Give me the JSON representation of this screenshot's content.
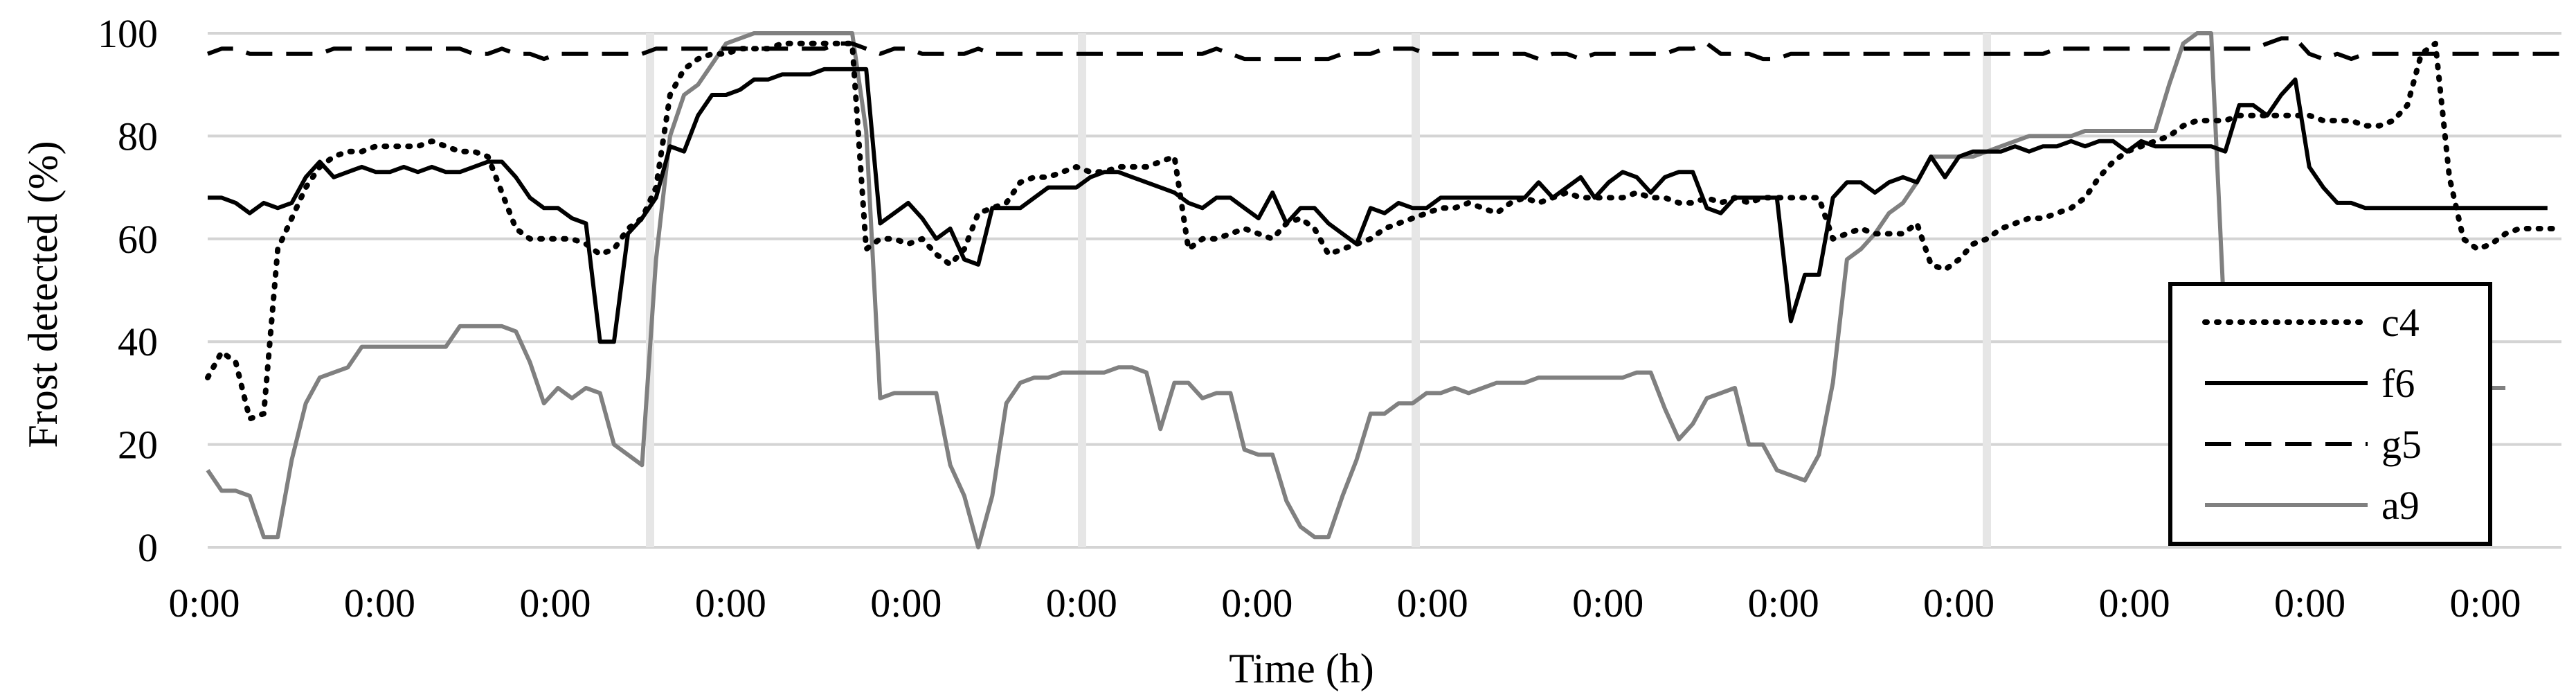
{
  "chart_data": {
    "type": "line",
    "xlabel": "Time (h)",
    "ylabel": "Frost detected (%)",
    "ylim": [
      0,
      100
    ],
    "yticks": [
      0,
      20,
      40,
      60,
      80,
      100
    ],
    "xtick_labels": [
      "0:00",
      "0:00",
      "0:00",
      "0:00",
      "0:00",
      "0:00",
      "0:00",
      "0:00",
      "0:00",
      "0:00",
      "0:00",
      "0:00",
      "0:00",
      "0:00"
    ],
    "grid": "horizontal",
    "legend_position": "right",
    "x_count": 169,
    "series": [
      {
        "name": "c4",
        "color": "#000000",
        "style": "dotted",
        "values": [
          33,
          38,
          36,
          25,
          26,
          58,
          64,
          70,
          74,
          76,
          77,
          77,
          78,
          78,
          78,
          78,
          79,
          78,
          77,
          77,
          76,
          69,
          62,
          60,
          60,
          60,
          60,
          59,
          57,
          58,
          62,
          64,
          70,
          88,
          93,
          95,
          96,
          96,
          97,
          97,
          97,
          98,
          98,
          98,
          98,
          98,
          98,
          58,
          60,
          60,
          59,
          60,
          57,
          55,
          58,
          65,
          66,
          67,
          71,
          72,
          72,
          73,
          74,
          73,
          73,
          74,
          74,
          74,
          75,
          76,
          58,
          60,
          60,
          61,
          62,
          61,
          60,
          63,
          64,
          62,
          57,
          58,
          59,
          60,
          62,
          63,
          64,
          65,
          66,
          66,
          67,
          66,
          65,
          67,
          68,
          67,
          68,
          69,
          68,
          68,
          68,
          68,
          69,
          68,
          68,
          67,
          67,
          68,
          67,
          68,
          67,
          68,
          68,
          68,
          68,
          68,
          60,
          61,
          62,
          61,
          61,
          61,
          63,
          55,
          54,
          56,
          59,
          60,
          62,
          63,
          64,
          64,
          65,
          66,
          68,
          72,
          75,
          77,
          78,
          79,
          80,
          82,
          83,
          83,
          83,
          84,
          84,
          84,
          84,
          84,
          84,
          83,
          83,
          83,
          82,
          82,
          83,
          86,
          96,
          98,
          72,
          60,
          58,
          59,
          61,
          62,
          62,
          62,
          62
        ]
      },
      {
        "name": "f6",
        "color": "#000000",
        "style": "solid",
        "values": [
          68,
          68,
          67,
          65,
          67,
          66,
          67,
          72,
          75,
          72,
          73,
          74,
          73,
          73,
          74,
          73,
          74,
          73,
          73,
          74,
          75,
          75,
          72,
          68,
          66,
          66,
          64,
          63,
          40,
          40,
          61,
          64,
          68,
          78,
          77,
          84,
          88,
          88,
          89,
          91,
          91,
          92,
          92,
          92,
          93,
          93,
          93,
          93,
          63,
          65,
          67,
          64,
          60,
          62,
          56,
          55,
          66,
          66,
          66,
          68,
          70,
          70,
          70,
          72,
          73,
          73,
          72,
          71,
          70,
          69,
          67,
          66,
          68,
          68,
          66,
          64,
          69,
          63,
          66,
          66,
          63,
          61,
          59,
          66,
          65,
          67,
          66,
          66,
          68,
          68,
          68,
          68,
          68,
          68,
          68,
          71,
          68,
          70,
          72,
          68,
          71,
          73,
          72,
          69,
          72,
          73,
          73,
          66,
          65,
          68,
          68,
          68,
          68,
          44,
          53,
          53,
          68,
          71,
          71,
          69,
          71,
          72,
          71,
          76,
          72,
          76,
          77,
          77,
          77,
          78,
          77,
          78,
          78,
          79,
          78,
          79,
          79,
          77,
          79,
          78,
          78,
          78,
          78,
          78,
          77,
          86,
          86,
          84,
          88,
          91,
          74,
          70,
          67,
          67,
          66,
          66,
          66,
          66,
          66,
          66,
          66,
          66,
          66,
          66,
          66,
          66,
          66,
          66
        ]
      },
      {
        "name": "g5",
        "color": "#000000",
        "style": "dashed",
        "values": [
          96,
          97,
          97,
          96,
          96,
          96,
          96,
          96,
          96,
          97,
          97,
          97,
          97,
          97,
          97,
          97,
          97,
          97,
          97,
          96,
          96,
          97,
          96,
          96,
          95,
          96,
          96,
          96,
          96,
          96,
          96,
          96,
          97,
          97,
          97,
          97,
          97,
          97,
          97,
          97,
          97,
          97,
          97,
          97,
          97,
          98,
          98,
          97,
          96,
          97,
          97,
          96,
          96,
          96,
          96,
          97,
          96,
          96,
          96,
          96,
          96,
          96,
          96,
          96,
          96,
          96,
          96,
          96,
          96,
          96,
          96,
          96,
          97,
          96,
          95,
          95,
          95,
          95,
          95,
          95,
          95,
          96,
          96,
          96,
          97,
          97,
          97,
          96,
          96,
          96,
          96,
          96,
          96,
          96,
          96,
          95,
          96,
          96,
          95,
          96,
          96,
          96,
          96,
          96,
          96,
          97,
          97,
          98,
          96,
          96,
          96,
          95,
          95,
          96,
          96,
          96,
          96,
          96,
          96,
          96,
          96,
          96,
          96,
          96,
          96,
          96,
          96,
          96,
          96,
          96,
          96,
          96,
          97,
          97,
          97,
          97,
          97,
          97,
          97,
          97,
          97,
          97,
          97,
          97,
          97,
          97,
          97,
          98,
          99,
          99,
          96,
          95,
          96,
          95,
          96,
          96,
          96,
          96,
          96,
          96,
          96,
          96,
          96,
          96,
          96,
          96,
          96,
          96,
          96
        ]
      },
      {
        "name": "a9",
        "color": "#808080",
        "style": "solid",
        "values": [
          15,
          11,
          11,
          10,
          2,
          2,
          17,
          28,
          33,
          34,
          35,
          39,
          39,
          39,
          39,
          39,
          39,
          39,
          43,
          43,
          43,
          43,
          42,
          36,
          28,
          31,
          29,
          31,
          30,
          20,
          18,
          16,
          56,
          80,
          88,
          90,
          94,
          98,
          99,
          100,
          100,
          100,
          100,
          100,
          100,
          100,
          100,
          81,
          29,
          30,
          30,
          30,
          30,
          16,
          10,
          0,
          10,
          28,
          32,
          33,
          33,
          34,
          34,
          34,
          34,
          35,
          35,
          34,
          23,
          32,
          32,
          29,
          30,
          30,
          19,
          18,
          18,
          9,
          4,
          2,
          2,
          10,
          17,
          26,
          26,
          28,
          28,
          30,
          30,
          31,
          30,
          31,
          32,
          32,
          32,
          33,
          33,
          33,
          33,
          33,
          33,
          33,
          34,
          34,
          27,
          21,
          24,
          29,
          30,
          31,
          20,
          20,
          15,
          14,
          13,
          18,
          32,
          56,
          58,
          61,
          65,
          67,
          71,
          76,
          76,
          76,
          76,
          77,
          78,
          79,
          80,
          80,
          80,
          80,
          81,
          81,
          81,
          81,
          81,
          81,
          90,
          98,
          100,
          100,
          41,
          34,
          30,
          31,
          31,
          31,
          31,
          31,
          31,
          31,
          31,
          31,
          31,
          31,
          31,
          31,
          31,
          31,
          31,
          31,
          31
        ]
      }
    ]
  }
}
